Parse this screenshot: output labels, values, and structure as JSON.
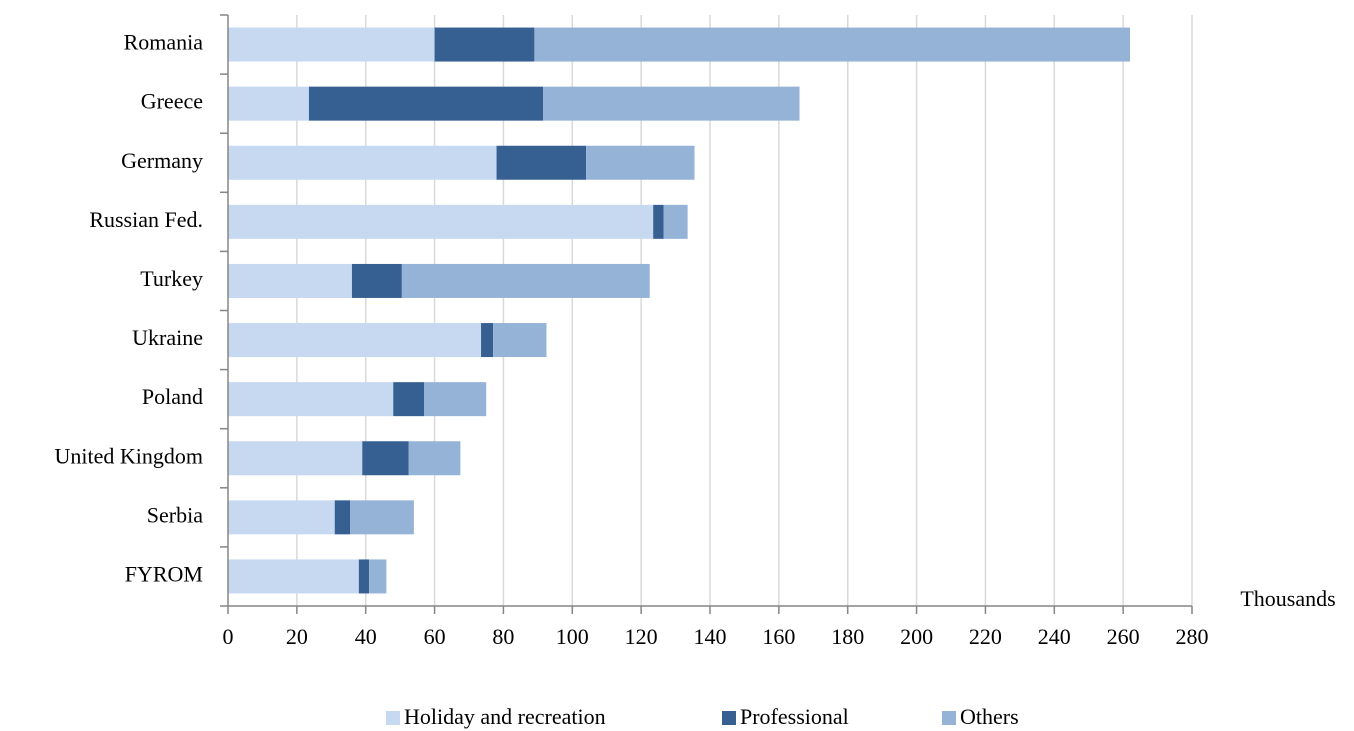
{
  "chart_data": {
    "type": "bar",
    "orientation": "horizontal",
    "stacked": true,
    "categories": [
      "Romania",
      "Greece",
      "Germany",
      "Russian Fed.",
      "Turkey",
      "Ukraine",
      "Poland",
      "United Kingdom",
      "Serbia",
      "FYROM"
    ],
    "series": [
      {
        "name": "Holiday and recreation",
        "color": "#c6d9f1",
        "values": [
          60,
          23.5,
          78,
          123.5,
          36,
          73.5,
          48,
          39,
          31,
          38
        ]
      },
      {
        "name": "Professional",
        "color": "#366092",
        "values": [
          29,
          68,
          26,
          3,
          14.5,
          3.5,
          9,
          13.5,
          4.5,
          3
        ]
      },
      {
        "name": "Others",
        "color": "#95b3d7",
        "values": [
          173,
          74.5,
          31.5,
          7,
          72,
          15.5,
          18,
          15,
          18.5,
          5
        ]
      }
    ],
    "xlim": [
      0,
      280
    ],
    "xticks": [
      0,
      20,
      40,
      60,
      80,
      100,
      120,
      140,
      160,
      180,
      200,
      220,
      240,
      260,
      280
    ],
    "tick_labels": [
      "0",
      "20",
      "40",
      "60",
      "80",
      "100",
      "120",
      "140",
      "160",
      "180",
      "200",
      "220",
      "240",
      "260",
      "280"
    ],
    "unit_label": "Thousands",
    "grid": true,
    "legend_position": "bottom"
  }
}
